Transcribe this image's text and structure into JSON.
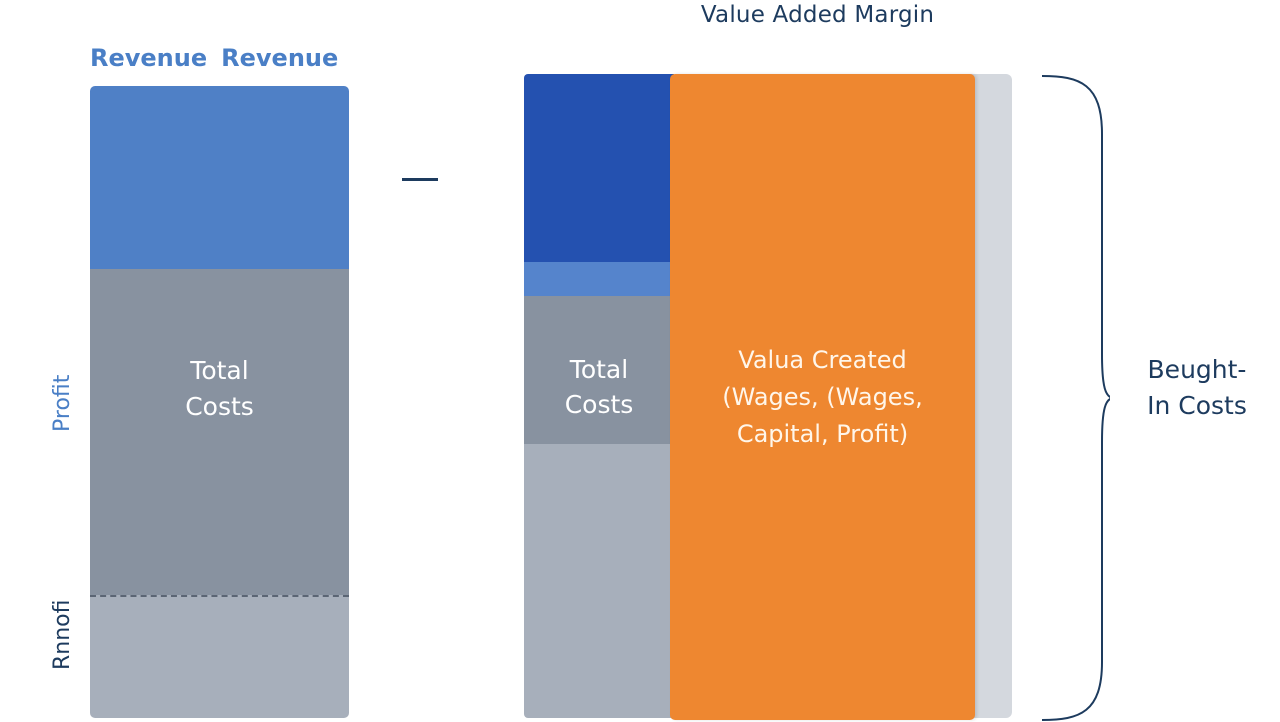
{
  "title": "Value Added Margin",
  "left_header": [
    "Revenue",
    "Revenue"
  ],
  "left_bar": {
    "middle_label": [
      "Total",
      "Costs"
    ]
  },
  "vertical_labels": {
    "upper": "Profit",
    "lower": "Rnnofi"
  },
  "right_column": {
    "label": [
      "Total",
      "Costs"
    ]
  },
  "value_block": {
    "label": [
      "Valua Created",
      "(Wages, (Wages,",
      "Capital, Profit)"
    ]
  },
  "brace_label": [
    "Beught-",
    "In Costs"
  ],
  "colors": {
    "revenue_blue": "#4f80c6",
    "dark_blue": "#2451b0",
    "grey": "#8892a0",
    "light_grey": "#a7afbb",
    "orange": "#ee8730",
    "navy_text": "#1d3b5e"
  }
}
